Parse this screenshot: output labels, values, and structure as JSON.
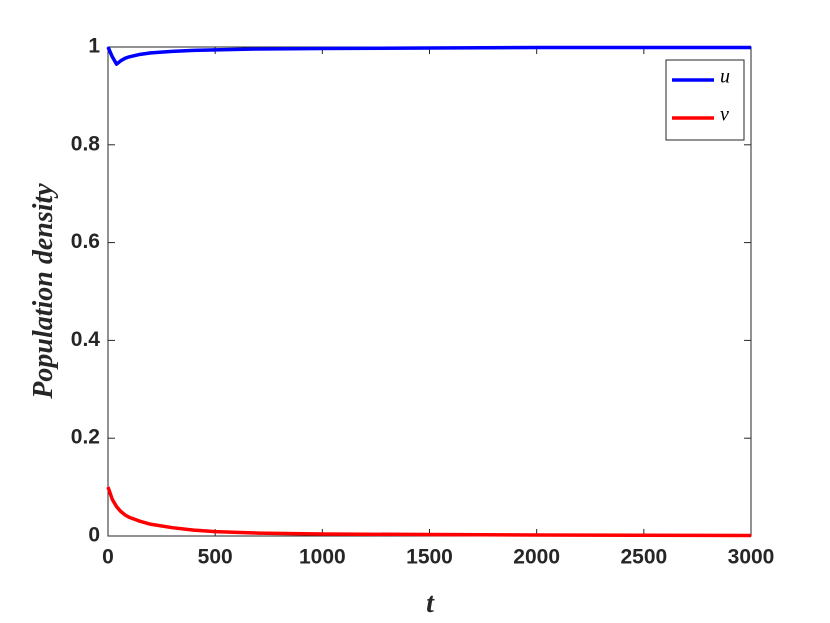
{
  "chart_data": {
    "type": "line",
    "x_label": "t",
    "y_label": "Population  density",
    "x": [
      0,
      20,
      40,
      60,
      80,
      100,
      150,
      200,
      300,
      400,
      500,
      700,
      1000,
      1500,
      2000,
      2500,
      3000
    ],
    "series": [
      {
        "name": "u",
        "color": "#0000ff",
        "values": [
          1,
          0.98,
          0.965,
          0.972,
          0.977,
          0.98,
          0.985,
          0.988,
          0.991,
          0.993,
          0.994,
          0.996,
          0.997,
          0.998,
          0.999,
          0.999,
          0.999
        ]
      },
      {
        "name": "v",
        "color": "#ff0000",
        "values": [
          0.1,
          0.075,
          0.06,
          0.05,
          0.043,
          0.038,
          0.03,
          0.024,
          0.017,
          0.012,
          0.009,
          0.006,
          0.004,
          0.003,
          0.002,
          0.0015,
          0.001
        ]
      }
    ],
    "xlim": [
      0,
      3000
    ],
    "xticks": [
      0,
      500,
      1000,
      1500,
      2000,
      2500,
      3000
    ],
    "ylim": [
      0,
      1
    ],
    "yticks": [
      0,
      0.2,
      0.4,
      0.6,
      0.8,
      1
    ],
    "legend": "upper right"
  }
}
